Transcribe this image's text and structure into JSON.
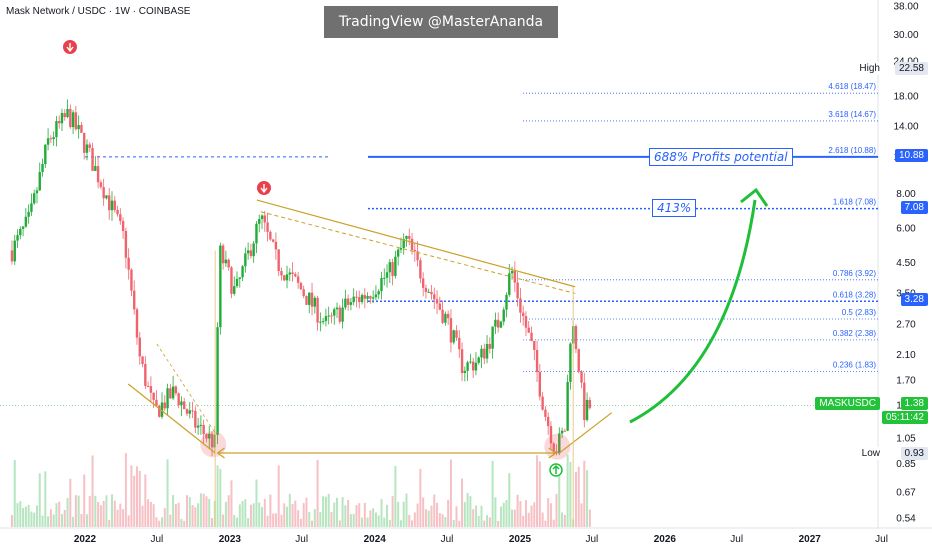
{
  "header": {
    "title": "Mask Network / USDC · 1W · COINBASE"
  },
  "watermark": {
    "text": "TradingView @MasterAnanda"
  },
  "colors": {
    "up": "#22ab38",
    "down": "#f0636c",
    "blue": "#2962ff",
    "gold": "#c9a227",
    "arrow_green": "#1fbf3a",
    "marker_red": "#e8404c"
  },
  "callouts": {
    "profit": "688% Profits potential",
    "pct413": "413%"
  },
  "side_labels": {
    "high_label": "High",
    "high_value": "22.58",
    "low_label": "Low",
    "low_value": "0.93",
    "ticker": "MASKUSDC",
    "price": "1.38",
    "countdown": "05:11:42",
    "level_1088": "10.88",
    "level_708": "7.08",
    "level_328": "3.28"
  },
  "chart_data": {
    "type": "candlestick",
    "title": "Mask Network / USDC · 1W · COINBASE",
    "y_scale": "log",
    "y_ticks": [
      "38.00",
      "30.00",
      "24.00",
      "18.00",
      "14.00",
      "10.88",
      "8.00",
      "6.00",
      "4.50",
      "3.50",
      "2.70",
      "2.10",
      "1.70",
      "1.38",
      "1.05",
      "0.85",
      "0.67",
      "0.54"
    ],
    "x_ticks": [
      "2022",
      "Jul",
      "2023",
      "Jul",
      "2024",
      "Jul",
      "2025",
      "Jul",
      "2026",
      "Jul",
      "2027",
      "Jul"
    ],
    "fib_levels": [
      {
        "label": "4.618 (18.47)",
        "value": 18.47
      },
      {
        "label": "3.618 (14.67)",
        "value": 14.67
      },
      {
        "label": "2.618 (10.88)",
        "value": 10.88
      },
      {
        "label": "1.618 (7.08)",
        "value": 7.08
      },
      {
        "label": "0.786 (3.92)",
        "value": 3.92
      },
      {
        "label": "0.618 (3.28)",
        "value": 3.28
      },
      {
        "label": "0.5 (2.83)",
        "value": 2.83
      },
      {
        "label": "0.382 (2.38)",
        "value": 2.38
      },
      {
        "label": "0.236 (1.83)",
        "value": 1.83
      }
    ],
    "high": 22.58,
    "low": 0.93,
    "last_price": 1.38,
    "price_path": [
      {
        "d": "2021-07-01",
        "p": 5.0
      },
      {
        "d": "2021-08-15",
        "p": 6.5
      },
      {
        "d": "2021-10-01",
        "p": 12.5
      },
      {
        "d": "2021-11-20",
        "p": 15.5
      },
      {
        "d": "2022-01-01",
        "p": 12.0
      },
      {
        "d": "2022-02-15",
        "p": 8.5
      },
      {
        "d": "2022-04-10",
        "p": 5.5
      },
      {
        "d": "2022-05-20",
        "p": 2.0
      },
      {
        "d": "2022-06-25",
        "p": 1.3
      },
      {
        "d": "2022-08-15",
        "p": 1.55
      },
      {
        "d": "2022-10-01",
        "p": 1.2
      },
      {
        "d": "2022-11-25",
        "p": 1.0
      },
      {
        "d": "2022-12-05",
        "p": 5.0
      },
      {
        "d": "2023-01-15",
        "p": 3.5
      },
      {
        "d": "2023-03-01",
        "p": 5.5
      },
      {
        "d": "2023-03-20",
        "p": 6.5
      },
      {
        "d": "2023-05-01",
        "p": 4.5
      },
      {
        "d": "2023-07-01",
        "p": 3.6
      },
      {
        "d": "2023-09-01",
        "p": 2.7
      },
      {
        "d": "2023-10-25",
        "p": 3.2
      },
      {
        "d": "2023-12-15",
        "p": 3.5
      },
      {
        "d": "2024-02-10",
        "p": 4.2
      },
      {
        "d": "2024-03-20",
        "p": 5.5
      },
      {
        "d": "2024-05-01",
        "p": 4.0
      },
      {
        "d": "2024-07-01",
        "p": 2.8
      },
      {
        "d": "2024-08-10",
        "p": 1.9
      },
      {
        "d": "2024-09-20",
        "p": 2.0
      },
      {
        "d": "2024-11-10",
        "p": 2.8
      },
      {
        "d": "2024-12-10",
        "p": 4.3
      },
      {
        "d": "2025-01-05",
        "p": 3.0
      },
      {
        "d": "2025-02-01",
        "p": 2.2
      },
      {
        "d": "2025-03-05",
        "p": 1.3
      },
      {
        "d": "2025-04-01",
        "p": 0.95
      },
      {
        "d": "2025-04-25",
        "p": 1.15
      },
      {
        "d": "2025-05-10",
        "p": 2.8
      },
      {
        "d": "2025-05-25",
        "p": 2.2
      },
      {
        "d": "2025-06-10",
        "p": 1.3
      },
      {
        "d": "2025-06-30",
        "p": 1.38
      }
    ]
  }
}
